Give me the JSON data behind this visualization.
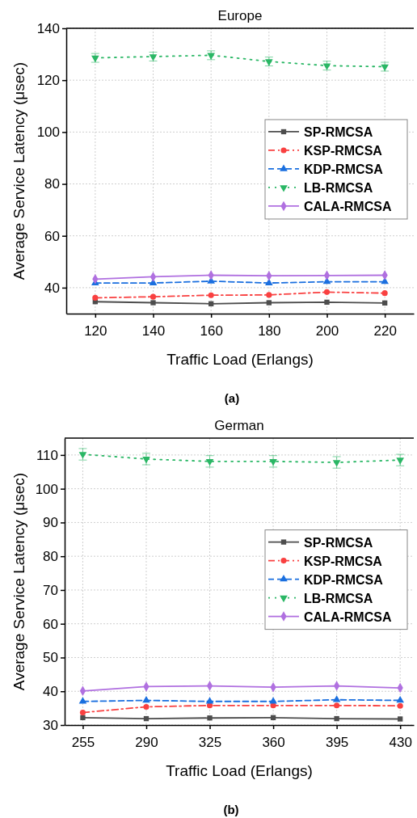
{
  "chart_data": [
    {
      "type": "line",
      "title": "Europe",
      "xlabel": "Traffic Load (Erlangs)",
      "ylabel": "Average Service Latency (μsec)",
      "annotations": [
        "(a)"
      ],
      "x": [
        120,
        140,
        160,
        180,
        200,
        220
      ],
      "xlim": [
        110,
        230
      ],
      "xticks": [
        120,
        140,
        160,
        180,
        200,
        220
      ],
      "ylim": [
        30,
        140
      ],
      "yticks": [
        40,
        60,
        80,
        100,
        120,
        140
      ],
      "grid": true,
      "legend": "right",
      "series": [
        {
          "name": "SP-RMCSA",
          "color": "#4d4d4d",
          "marker": "square",
          "line_style": "solid",
          "values": [
            34.6,
            34.2,
            33.8,
            34.2,
            34.4,
            34.1
          ]
        },
        {
          "name": "KSP-RMCSA",
          "color": "#f94040",
          "marker": "circle",
          "line_style": "dashdot",
          "values": [
            36.1,
            36.5,
            37.1,
            37.2,
            38.3,
            37.9
          ]
        },
        {
          "name": "KDP-RMCSA",
          "color": "#1a6fdf",
          "marker": "triangle",
          "line_style": "dashed",
          "values": [
            41.8,
            41.8,
            42.5,
            41.8,
            42.3,
            42.3
          ]
        },
        {
          "name": "LB-RMCSA",
          "color": "#2ab765",
          "marker": "triangle-down",
          "line_style": "dotted",
          "values": [
            128.6,
            129.1,
            129.6,
            127.2,
            125.6,
            125.2
          ],
          "errors": [
            1.7,
            1.7,
            1.7,
            1.7,
            1.7,
            1.7
          ]
        },
        {
          "name": "CALA-RMCSA",
          "color": "#b070e0",
          "marker": "diamond",
          "line_style": "solid",
          "values": [
            43.3,
            44.2,
            44.8,
            44.6,
            44.7,
            44.8
          ]
        }
      ]
    },
    {
      "type": "line",
      "title": "German",
      "xlabel": "Traffic Load (Erlangs)",
      "ylabel": "Average Service Latency (μsec)",
      "annotations": [
        "(b)"
      ],
      "x": [
        255,
        290,
        325,
        360,
        395,
        430
      ],
      "xlim": [
        245,
        437.5
      ],
      "xticks": [
        255,
        290,
        325,
        360,
        395,
        430
      ],
      "ylim": [
        30,
        115
      ],
      "yticks": [
        30,
        40,
        50,
        60,
        70,
        80,
        90,
        100,
        110
      ],
      "grid": true,
      "legend": "right",
      "series": [
        {
          "name": "SP-RMCSA",
          "color": "#4d4d4d",
          "marker": "square",
          "line_style": "solid",
          "values": [
            32.2,
            31.9,
            32.1,
            32.2,
            31.9,
            31.8
          ]
        },
        {
          "name": "KSP-RMCSA",
          "color": "#f94040",
          "marker": "circle",
          "line_style": "dashdot",
          "values": [
            33.7,
            35.4,
            35.8,
            35.8,
            35.8,
            35.7
          ]
        },
        {
          "name": "KDP-RMCSA",
          "color": "#1a6fdf",
          "marker": "triangle",
          "line_style": "dashed",
          "values": [
            37.0,
            37.3,
            37.0,
            37.0,
            37.5,
            37.3
          ]
        },
        {
          "name": "LB-RMCSA",
          "color": "#2ab765",
          "marker": "triangle-down",
          "line_style": "dotted",
          "values": [
            110.2,
            108.8,
            108.1,
            108.1,
            107.8,
            108.5
          ],
          "errors": [
            1.7,
            1.7,
            1.7,
            1.7,
            1.7,
            1.7
          ]
        },
        {
          "name": "CALA-RMCSA",
          "color": "#b070e0",
          "marker": "diamond",
          "line_style": "solid",
          "values": [
            40.1,
            41.4,
            41.6,
            41.2,
            41.6,
            41.0
          ]
        }
      ]
    }
  ]
}
